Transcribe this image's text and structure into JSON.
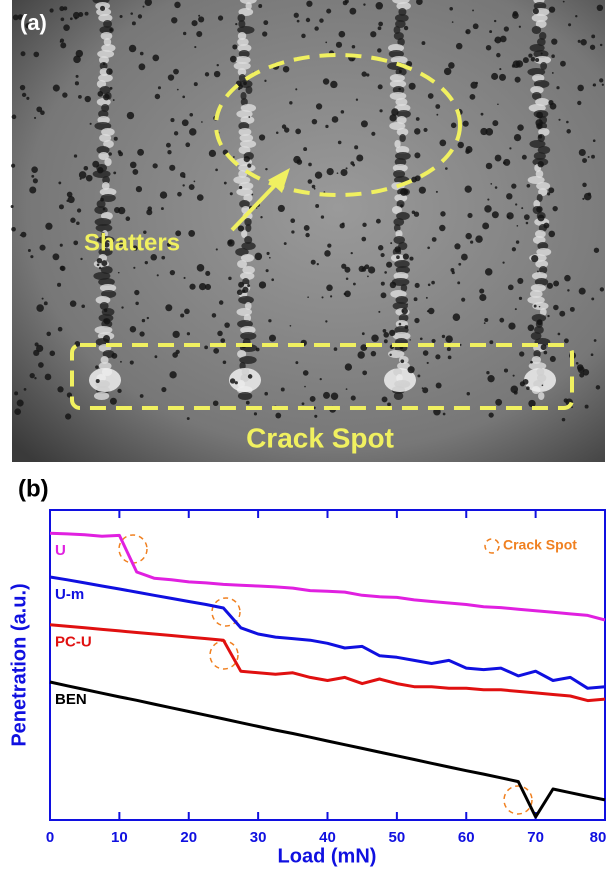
{
  "panel_a": {
    "label": "(a)",
    "annotation": "Shatters",
    "region_label": "Crack Spot"
  },
  "chart_data": {
    "type": "line",
    "panel_label": "(b)",
    "x_label": "Load (mN)",
    "y_label": "Penetration (a.u.)",
    "legend_text": "Crack Spot",
    "x": [
      0,
      2.5,
      5,
      7.5,
      10,
      12.5,
      15,
      17.5,
      20,
      22.5,
      25,
      27.5,
      30,
      32.5,
      35,
      37.5,
      40,
      42.5,
      45,
      47.5,
      50,
      52.5,
      55,
      57.5,
      60,
      62.5,
      65,
      67.5,
      70,
      72.5,
      75,
      77.5,
      80
    ],
    "series": [
      {
        "name": "U",
        "color": "#e020e0",
        "values": [
          92.5,
          92.3,
          92,
          91.5,
          91.8,
          80,
          78,
          77.5,
          76.8,
          76.5,
          76,
          75.7,
          75.5,
          75.2,
          74.8,
          74,
          73.8,
          73.5,
          72.5,
          72,
          71.8,
          71,
          70.5,
          70,
          69.5,
          68.8,
          68.5,
          68,
          67.5,
          67,
          66.5,
          66,
          64.5
        ]
      },
      {
        "name": "U-m",
        "color": "#1010e0",
        "values": [
          78.4,
          77.5,
          76.5,
          75.5,
          74.5,
          73.5,
          72.5,
          71.5,
          70.5,
          69.5,
          68.4,
          62,
          60,
          59,
          58.5,
          58,
          57,
          55.5,
          56,
          53,
          52.5,
          51.5,
          50.5,
          51.5,
          49,
          48.5,
          49,
          46.5,
          48,
          45,
          46,
          42.5,
          43
        ]
      },
      {
        "name": "PC-U",
        "color": "#e01010",
        "values": [
          63,
          62.5,
          62,
          61.5,
          61,
          60.5,
          60,
          59.5,
          59,
          58.5,
          58,
          48,
          47.5,
          47,
          47.5,
          46,
          45,
          46,
          44,
          45.5,
          44,
          43,
          43,
          42.5,
          42.5,
          42,
          42,
          41.5,
          41,
          40.5,
          40,
          38.5,
          39
        ]
      },
      {
        "name": "BEN",
        "color": "#000000",
        "values": [
          44.5,
          43.3,
          42.1,
          40.9,
          39.7,
          38.6,
          37.4,
          36.2,
          35,
          33.8,
          32.6,
          31.4,
          30.2,
          29,
          27.9,
          26.7,
          25.5,
          24.3,
          23.1,
          21.9,
          20.7,
          19.5,
          18.3,
          17.1,
          15.9,
          14.8,
          13.6,
          12.4,
          1,
          10,
          8.8,
          7.6,
          6.5
        ]
      }
    ],
    "xlim": [
      0,
      80
    ],
    "xticks": [
      0,
      10,
      20,
      30,
      40,
      50,
      60,
      70,
      80
    ],
    "ylim": [
      0,
      100
    ]
  }
}
